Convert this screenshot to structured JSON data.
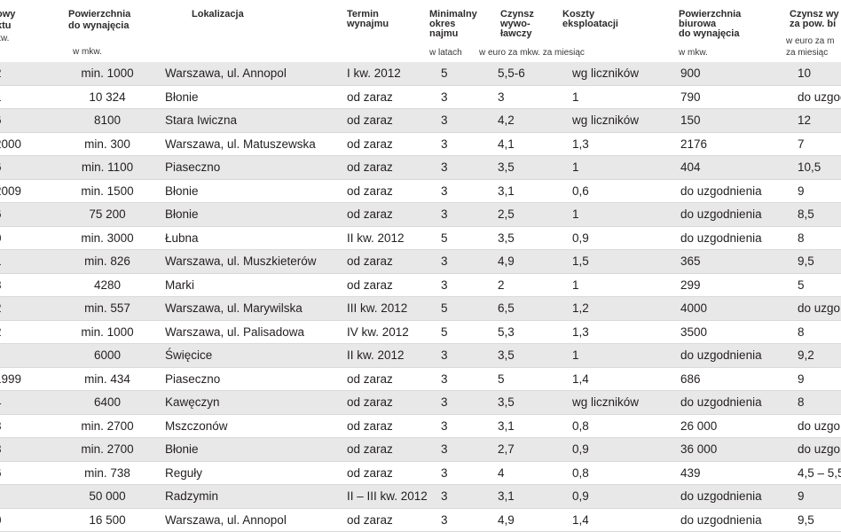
{
  "headers": {
    "c0_l1": "owy",
    "c0_l2": "ktu",
    "c0_l3": "kw.",
    "c1_l1": "Powierzchnia",
    "c1_l2": "do wynajęcia",
    "c1_unit": "w mkw.",
    "c2_l1": "Lokalizacja",
    "c3_l1": "Termin",
    "c3_l2": "wynajmu",
    "c4_l1": "Minimalny",
    "c4_l2": "okres",
    "c4_l3": "najmu",
    "c4_unit": "w latach",
    "c5_l1": "Czynsz",
    "c5_l2": "wywo-",
    "c5_l3": "ławczy",
    "c5_unit": "w euro za mkw. za miesiąc",
    "c6_l1": "Koszty",
    "c6_l2": "eksploatacji",
    "c7_l1": "Powierzchnia",
    "c7_l2": "biurowa",
    "c7_l3": "do wynajęcia",
    "c7_unit": "w mkw.",
    "c8_l1": "Czynsz wy",
    "c8_l2": "za pow. bi",
    "c8_l3": "w euro za m",
    "c8_l4": "za miesiąc"
  },
  "rows": [
    [
      "2",
      "min. 1000",
      "Warszawa, ul. Annopol",
      "I kw. 2012",
      "5",
      "5,5-6",
      "wg liczników",
      "900",
      "10"
    ],
    [
      "1",
      "10 324",
      "Błonie",
      "od zaraz",
      "3",
      "3",
      "1",
      "790",
      "do uzgod"
    ],
    [
      "6",
      "8100",
      "Stara Iwiczna",
      "od zaraz",
      "3",
      "4,2",
      "wg liczników",
      "150",
      "12"
    ],
    [
      "2000",
      "min. 300",
      "Warszawa, ul. Matuszewska",
      "od zaraz",
      "3",
      "4,1",
      "1,3",
      "2176",
      "7"
    ],
    [
      "6",
      "min. 1100",
      "Piaseczno",
      "od zaraz",
      "3",
      "3,5",
      "1",
      "404",
      "10,5"
    ],
    [
      "2009",
      "min. 1500",
      "Błonie",
      "od zaraz",
      "3",
      "3,1",
      "0,6",
      "do uzgodnienia",
      "9"
    ],
    [
      "6",
      "75 200",
      "Błonie",
      "od zaraz",
      "3",
      "2,5",
      "1",
      "do uzgodnienia",
      "8,5"
    ],
    [
      "0",
      "min. 3000",
      "Łubna",
      "II kw. 2012",
      "5",
      "3,5",
      "0,9",
      "do uzgodnienia",
      "8"
    ],
    [
      "1",
      "min. 826",
      "Warszawa, ul. Muszkieterów",
      "od zaraz",
      "3",
      "4,9",
      "1,5",
      "365",
      "9,5"
    ],
    [
      "8",
      "4280",
      "Marki",
      "od zaraz",
      "3",
      "2",
      "1",
      "299",
      "5"
    ],
    [
      "2",
      "min. 557",
      "Warszawa, ul. Marywilska",
      "III kw. 2012",
      "5",
      "6,5",
      "1,2",
      "4000",
      "do uzgo"
    ],
    [
      "2",
      "min. 1000",
      "Warszawa, ul. Palisadowa",
      "IV kw. 2012",
      "5",
      "5,3",
      "1,3",
      "3500",
      "8"
    ],
    [
      "",
      "6000",
      "Święcice",
      "II kw. 2012",
      "3",
      "3,5",
      "1",
      "do uzgodnienia",
      "9,2"
    ],
    [
      "1999",
      "min.  434",
      "Piaseczno",
      "od zaraz",
      "3",
      "5",
      "1,4",
      "686",
      "9"
    ],
    [
      "4",
      "6400",
      "Kawęczyn",
      "od zaraz",
      "3",
      "3,5",
      "wg liczników",
      "do uzgodnienia",
      "8"
    ],
    [
      "8",
      "min. 2700",
      "Mszczonów",
      "od zaraz",
      "3",
      "3,1",
      "0,8",
      "26 000",
      "do uzgo"
    ],
    [
      "8",
      "min. 2700",
      "Błonie",
      "od zaraz",
      "3",
      "2,7",
      "0,9",
      "36 000",
      "do uzgo"
    ],
    [
      "6",
      "min. 738",
      "Reguły",
      "od zaraz",
      "3",
      "4",
      "0,8",
      "439",
      "4,5 – 5,5"
    ],
    [
      "",
      "50 000",
      "Radzymin",
      "II – III kw. 2012",
      "3",
      "3,1",
      "0,9",
      "do uzgodnienia",
      "9"
    ],
    [
      "0",
      "16 500",
      "Warszawa, ul. Annopol",
      "od zaraz",
      "3",
      "4,9",
      "1,4",
      "do uzgodnienia",
      "9,5"
    ]
  ]
}
